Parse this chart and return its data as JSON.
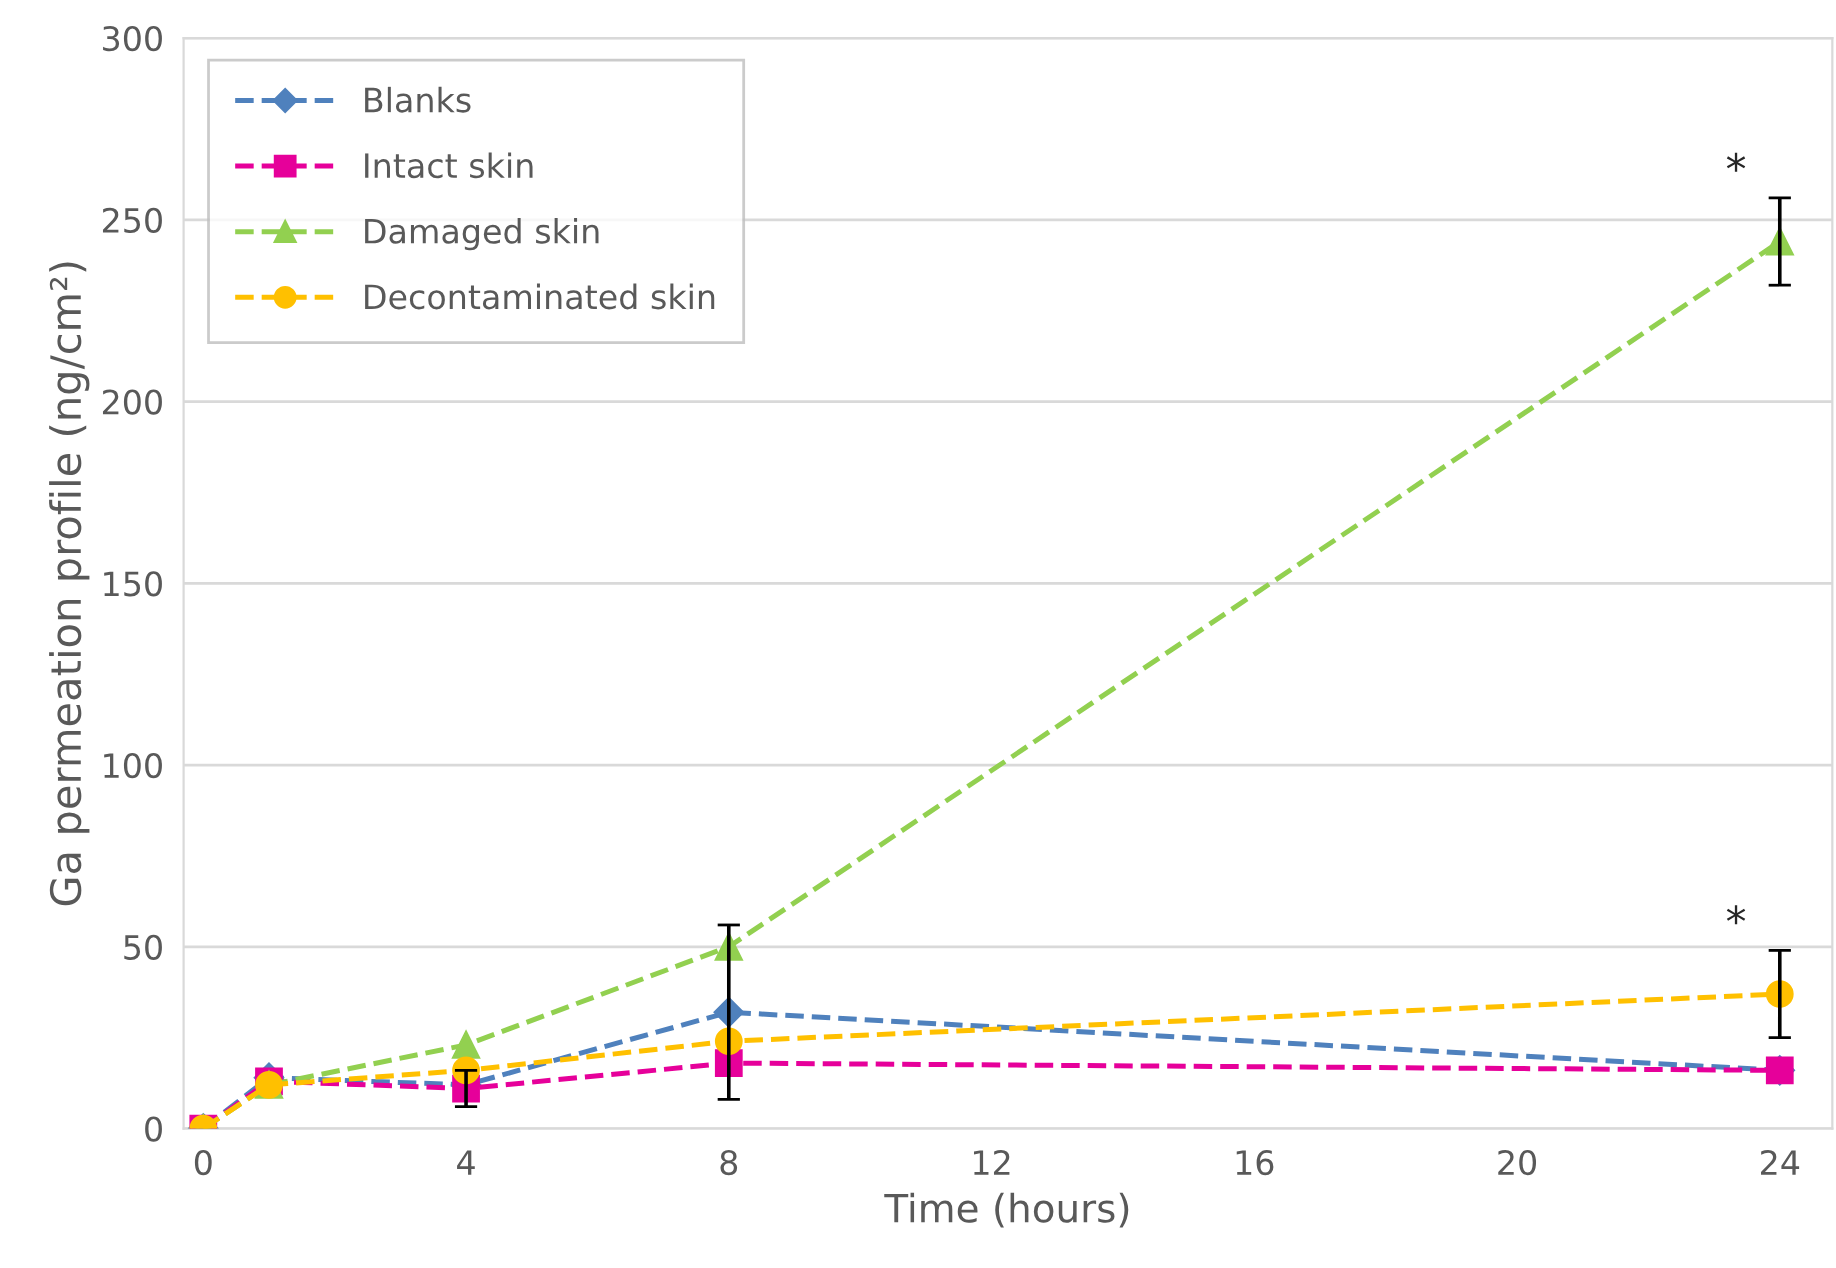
{
  "chart_data": {
    "type": "line",
    "xlabel": "Time (hours)",
    "ylabel": "Ga permeation profile (ng/cm²)",
    "x": [
      0,
      1,
      4,
      8,
      24
    ],
    "xlim": [
      -0.3,
      24.8
    ],
    "xticks": [
      0,
      4,
      8,
      12,
      16,
      20,
      24
    ],
    "ylim": [
      0,
      300
    ],
    "yticks": [
      0,
      50,
      100,
      150,
      200,
      250,
      300
    ],
    "grid": "y",
    "legend": "top left",
    "line_style": "dashed",
    "series": [
      {
        "name": "Blanks",
        "color": "#4f81bd",
        "marker": "diamond",
        "values": [
          0,
          14,
          12,
          32,
          16
        ],
        "errors": [
          null,
          null,
          null,
          24,
          null
        ]
      },
      {
        "name": "Intact skin",
        "color": "#e6009a",
        "marker": "square",
        "values": [
          0,
          13,
          11,
          18,
          16
        ],
        "errors": [
          null,
          null,
          5,
          null,
          null
        ]
      },
      {
        "name": "Damaged skin",
        "color": "#92d050",
        "marker": "triangle",
        "values": [
          0,
          12,
          23,
          50,
          244
        ],
        "errors": [
          null,
          null,
          null,
          null,
          [
            232,
            256
          ]
        ]
      },
      {
        "name": "Decontaminated skin",
        "color": "#ffc000",
        "marker": "circle",
        "values": [
          0,
          12,
          16,
          24,
          37
        ],
        "errors": [
          null,
          null,
          null,
          null,
          [
            25,
            49
          ]
        ]
      }
    ],
    "annotations": [
      {
        "text": "*",
        "x": 24,
        "y": 256
      },
      {
        "text": "*",
        "x": 24,
        "y": 49
      }
    ]
  }
}
